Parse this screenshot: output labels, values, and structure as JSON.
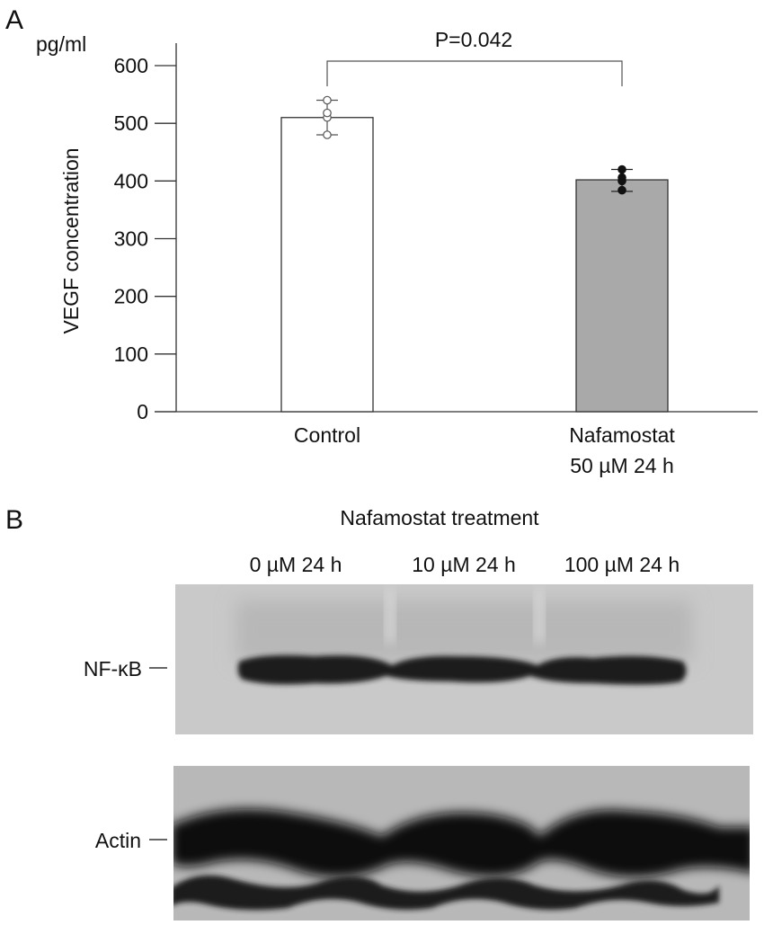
{
  "panel_a": {
    "label": "A",
    "unit": "pg/ml",
    "comparison": {
      "text": "P=0.042",
      "between": [
        "Control",
        "Nafamostat 50 µM 24 h"
      ]
    }
  },
  "panel_b": {
    "label": "B",
    "header": "Nafamostat treatment",
    "lanes": [
      "0 µM 24 h",
      "10 µM 24 h",
      "100 µM 24 h"
    ],
    "blots": [
      {
        "name": "NF-κB"
      },
      {
        "name": "Actin"
      }
    ]
  },
  "chart_data": {
    "type": "bar",
    "title": "",
    "xlabel": "",
    "ylabel": "VEGF concentration",
    "y_unit": "pg/ml",
    "ylim": [
      0,
      600
    ],
    "yticks": [
      0,
      100,
      200,
      300,
      400,
      500,
      600
    ],
    "grid": false,
    "categories": [
      [
        "Control"
      ],
      [
        "Nafamostat",
        "50 µM 24 h"
      ]
    ],
    "values": [
      510,
      402
    ],
    "errors": [
      [
        480,
        540
      ],
      [
        382,
        420
      ]
    ],
    "points": [
      [
        480,
        510,
        518,
        540
      ],
      [
        384,
        400,
        406,
        420
      ]
    ],
    "bar_colors": [
      "#ffffff",
      "#a9a9a9"
    ],
    "point_styles": [
      "open",
      "filled"
    ]
  }
}
